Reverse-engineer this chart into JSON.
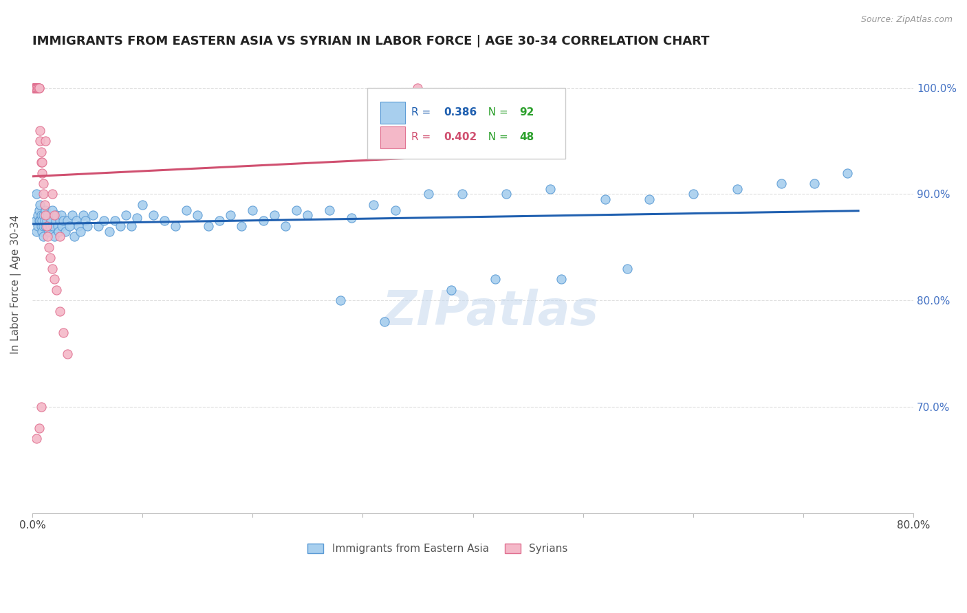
{
  "title": "IMMIGRANTS FROM EASTERN ASIA VS SYRIAN IN LABOR FORCE | AGE 30-34 CORRELATION CHART",
  "source": "Source: ZipAtlas.com",
  "ylabel": "In Labor Force | Age 30-34",
  "r_eastern": 0.386,
  "n_eastern": 92,
  "r_syrian": 0.402,
  "n_syrian": 48,
  "xlim": [
    0.0,
    0.8
  ],
  "ylim": [
    0.6,
    1.03
  ],
  "yticks": [
    0.7,
    0.8,
    0.9,
    1.0
  ],
  "ytick_labels": [
    "70.0%",
    "80.0%",
    "90.0%",
    "100.0%"
  ],
  "xticks": [
    0.0,
    0.1,
    0.2,
    0.3,
    0.4,
    0.5,
    0.6,
    0.7,
    0.8
  ],
  "xtick_labels": [
    "0.0%",
    "",
    "",
    "",
    "",
    "",
    "",
    "",
    "80.0%"
  ],
  "eastern_color": "#A8CFEE",
  "eastern_edge_color": "#5B9BD5",
  "syrian_color": "#F4B8C8",
  "syrian_edge_color": "#E07090",
  "trend_eastern_color": "#2060B0",
  "trend_syrian_color": "#D05070",
  "watermark": "ZIPatlas",
  "eastern_x": [
    0.003,
    0.004,
    0.004,
    0.005,
    0.005,
    0.006,
    0.006,
    0.007,
    0.007,
    0.008,
    0.008,
    0.009,
    0.009,
    0.01,
    0.01,
    0.01,
    0.011,
    0.012,
    0.012,
    0.013,
    0.014,
    0.015,
    0.016,
    0.017,
    0.018,
    0.019,
    0.02,
    0.021,
    0.022,
    0.023,
    0.024,
    0.025,
    0.026,
    0.027,
    0.028,
    0.03,
    0.032,
    0.034,
    0.036,
    0.038,
    0.04,
    0.042,
    0.044,
    0.046,
    0.048,
    0.05,
    0.055,
    0.06,
    0.065,
    0.07,
    0.075,
    0.08,
    0.085,
    0.09,
    0.095,
    0.1,
    0.11,
    0.12,
    0.13,
    0.14,
    0.15,
    0.16,
    0.17,
    0.18,
    0.19,
    0.2,
    0.21,
    0.22,
    0.23,
    0.24,
    0.25,
    0.27,
    0.29,
    0.31,
    0.33,
    0.36,
    0.39,
    0.43,
    0.47,
    0.52,
    0.56,
    0.6,
    0.64,
    0.68,
    0.71,
    0.74,
    0.38,
    0.42,
    0.28,
    0.32,
    0.48,
    0.54
  ],
  "eastern_y": [
    0.875,
    0.9,
    0.865,
    0.88,
    0.87,
    0.885,
    0.875,
    0.875,
    0.89,
    0.87,
    0.88,
    0.875,
    0.865,
    0.88,
    0.87,
    0.86,
    0.875,
    0.87,
    0.885,
    0.875,
    0.88,
    0.865,
    0.87,
    0.875,
    0.885,
    0.87,
    0.86,
    0.875,
    0.88,
    0.87,
    0.865,
    0.875,
    0.88,
    0.87,
    0.875,
    0.865,
    0.875,
    0.87,
    0.88,
    0.86,
    0.875,
    0.87,
    0.865,
    0.88,
    0.875,
    0.87,
    0.88,
    0.87,
    0.875,
    0.865,
    0.875,
    0.87,
    0.88,
    0.87,
    0.878,
    0.89,
    0.88,
    0.875,
    0.87,
    0.885,
    0.88,
    0.87,
    0.875,
    0.88,
    0.87,
    0.885,
    0.875,
    0.88,
    0.87,
    0.885,
    0.88,
    0.885,
    0.878,
    0.89,
    0.885,
    0.9,
    0.9,
    0.9,
    0.905,
    0.895,
    0.895,
    0.9,
    0.905,
    0.91,
    0.91,
    0.92,
    0.81,
    0.82,
    0.8,
    0.78,
    0.82,
    0.83
  ],
  "syrian_x": [
    0.001,
    0.001,
    0.001,
    0.002,
    0.002,
    0.002,
    0.002,
    0.003,
    0.003,
    0.003,
    0.003,
    0.004,
    0.004,
    0.004,
    0.005,
    0.005,
    0.005,
    0.005,
    0.006,
    0.006,
    0.007,
    0.007,
    0.008,
    0.008,
    0.009,
    0.009,
    0.01,
    0.01,
    0.011,
    0.012,
    0.013,
    0.014,
    0.015,
    0.016,
    0.018,
    0.02,
    0.022,
    0.025,
    0.028,
    0.032,
    0.012,
    0.02,
    0.025,
    0.018,
    0.008,
    0.006,
    0.004,
    0.35
  ],
  "syrian_y": [
    1.0,
    1.0,
    1.0,
    1.0,
    1.0,
    1.0,
    1.0,
    1.0,
    1.0,
    1.0,
    1.0,
    1.0,
    1.0,
    1.0,
    1.0,
    1.0,
    1.0,
    1.0,
    1.0,
    1.0,
    0.96,
    0.95,
    0.94,
    0.93,
    0.93,
    0.92,
    0.91,
    0.9,
    0.89,
    0.88,
    0.87,
    0.86,
    0.85,
    0.84,
    0.83,
    0.82,
    0.81,
    0.79,
    0.77,
    0.75,
    0.95,
    0.88,
    0.86,
    0.9,
    0.7,
    0.68,
    0.67,
    1.0
  ]
}
